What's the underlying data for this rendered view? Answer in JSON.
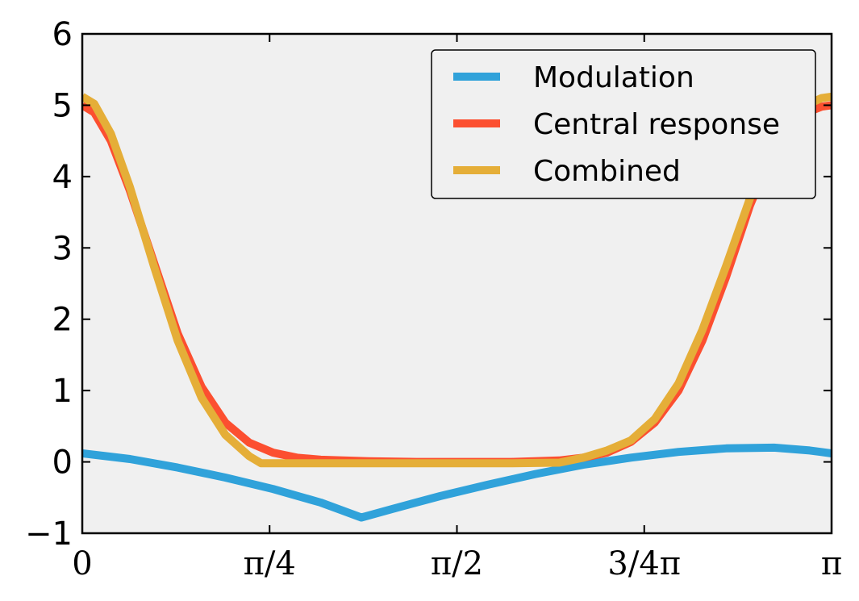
{
  "chart_data": {
    "type": "line",
    "title": "",
    "xlabel": "",
    "ylabel": "",
    "xlim": [
      0,
      3.14159
    ],
    "ylim": [
      -1,
      6
    ],
    "grid": false,
    "legend_position": "top-right",
    "yticks": [
      -1,
      0,
      1,
      2,
      3,
      4,
      5,
      6
    ],
    "ytick_labels": [
      "−1",
      "0",
      "1",
      "2",
      "3",
      "4",
      "5",
      "6"
    ],
    "xticks": [
      0,
      0.7854,
      1.5708,
      2.3562,
      3.14159
    ],
    "xtick_labels": [
      "0",
      "π/4",
      "π/2",
      "3/4π",
      "π"
    ],
    "colors": {
      "background": "#f0f0f0",
      "axes": "#000000"
    },
    "series": [
      {
        "name": "Modulation",
        "color": "#30a2da",
        "x": [
          0,
          0.2,
          0.4,
          0.6,
          0.8,
          1.0,
          1.17,
          1.3,
          1.5,
          1.7,
          1.9,
          2.1,
          2.3,
          2.5,
          2.7,
          2.9,
          3.05,
          3.14159
        ],
        "y": [
          0.12,
          0.04,
          -0.08,
          -0.22,
          -0.38,
          -0.57,
          -0.78,
          -0.66,
          -0.48,
          -0.32,
          -0.17,
          -0.04,
          0.06,
          0.14,
          0.19,
          0.2,
          0.16,
          0.12
        ]
      },
      {
        "name": "Central response",
        "color": "#fc4f30",
        "x": [
          0,
          0.05,
          0.12,
          0.2,
          0.3,
          0.4,
          0.5,
          0.6,
          0.7,
          0.8,
          0.9,
          1.0,
          1.2,
          1.4,
          1.6,
          1.8,
          2.0,
          2.1,
          2.2,
          2.3,
          2.4,
          2.5,
          2.6,
          2.7,
          2.8,
          2.9,
          3.0,
          3.1,
          3.14159
        ],
        "y": [
          5.0,
          4.9,
          4.5,
          3.8,
          2.8,
          1.8,
          1.05,
          0.55,
          0.27,
          0.13,
          0.06,
          0.03,
          0.01,
          0.0,
          0.0,
          0.0,
          0.02,
          0.06,
          0.13,
          0.28,
          0.55,
          1.0,
          1.7,
          2.6,
          3.6,
          4.4,
          4.85,
          4.98,
          5.0
        ]
      },
      {
        "name": "Combined",
        "color": "#e5ae38",
        "x": [
          0,
          0.05,
          0.12,
          0.2,
          0.3,
          0.4,
          0.5,
          0.6,
          0.7,
          0.75,
          0.8,
          1.0,
          1.2,
          1.4,
          1.6,
          1.8,
          2.0,
          2.1,
          2.2,
          2.3,
          2.4,
          2.5,
          2.6,
          2.7,
          2.8,
          2.9,
          3.0,
          3.1,
          3.14159
        ],
        "y": [
          5.12,
          5.02,
          4.6,
          3.85,
          2.75,
          1.7,
          0.9,
          0.38,
          0.08,
          -0.02,
          -0.02,
          -0.02,
          -0.02,
          -0.02,
          -0.02,
          -0.02,
          -0.01,
          0.06,
          0.16,
          0.3,
          0.6,
          1.1,
          1.85,
          2.75,
          3.7,
          4.5,
          4.95,
          5.1,
          5.12
        ]
      }
    ]
  }
}
